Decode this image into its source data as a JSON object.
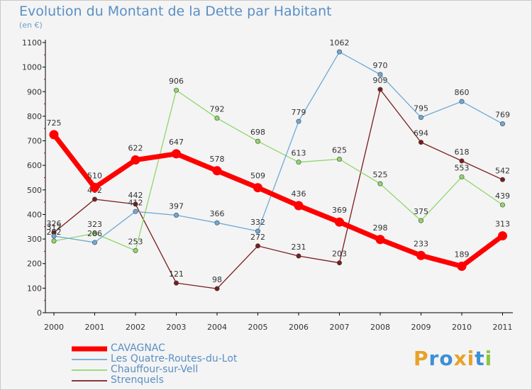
{
  "title": "Evolution du Montant de la Dette par Habitant",
  "unit": "(en €)",
  "logo": {
    "text": "Proxiti",
    "colors": [
      "#e8a22a",
      "#3d8fd6",
      "#3d8fd6",
      "#e8a22a",
      "#e8a22a",
      "#3d8fd6",
      "#8cc63f"
    ]
  },
  "chart_data": {
    "type": "line",
    "title": "Evolution du Montant de la Dette par Habitant",
    "subtitle": "(en €)",
    "x": [
      "2000",
      "2001",
      "2002",
      "2003",
      "2004",
      "2005",
      "2006",
      "2007",
      "2008",
      "2009",
      "2010",
      "2011"
    ],
    "ylim": [
      0,
      1100
    ],
    "yticks": [
      0,
      100,
      200,
      300,
      400,
      500,
      600,
      700,
      800,
      900,
      1000,
      1100
    ],
    "grid": false,
    "legend_position": "bottom-left",
    "series": [
      {
        "name": "Strenquels",
        "color": "#7a1c1c",
        "values": [
          326,
          462,
          442,
          121,
          98,
          272,
          231,
          203,
          909,
          694,
          618,
          542
        ]
      },
      {
        "name": "Chauffour-sur-Vell",
        "color": "#8fd66a",
        "values": [
          292,
          323,
          253,
          906,
          792,
          698,
          613,
          625,
          525,
          375,
          553,
          439
        ]
      },
      {
        "name": "Les Quatre-Routes-du-Lot",
        "color": "#6ea9d6",
        "values": [
          312,
          286,
          412,
          397,
          366,
          332,
          779,
          1062,
          970,
          795,
          860,
          769
        ]
      },
      {
        "name": "CAVAGNAC",
        "color": "#ff0000",
        "values": [
          725,
          510,
          622,
          647,
          578,
          509,
          436,
          369,
          298,
          233,
          189,
          313
        ]
      }
    ],
    "legend": [
      "CAVAGNAC",
      "Les Quatre-Routes-du-Lot",
      "Chauffour-sur-Vell",
      "Strenquels"
    ]
  }
}
